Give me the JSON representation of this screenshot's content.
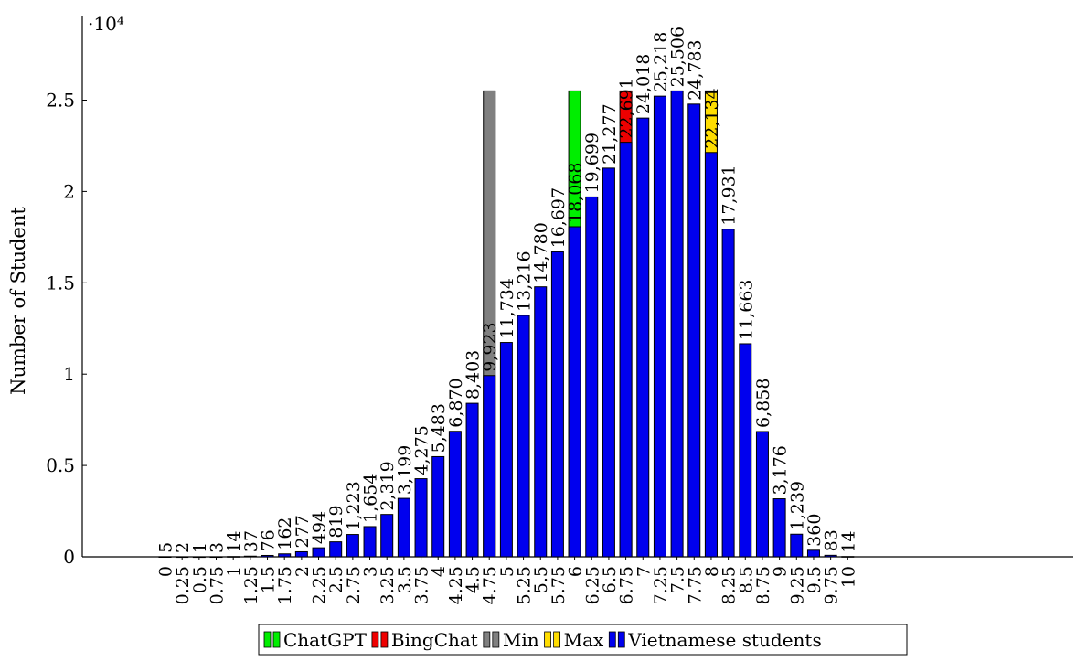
{
  "chart_data": {
    "type": "bar",
    "ylabel": "Number of Student",
    "xlabel": "",
    "y_scale_label": "·10⁴",
    "ylim": [
      0,
      28000
    ],
    "yticks": [
      {
        "value": 0,
        "label": "0"
      },
      {
        "value": 5000,
        "label": "0.5"
      },
      {
        "value": 10000,
        "label": "1"
      },
      {
        "value": 15000,
        "label": "1.5"
      },
      {
        "value": 20000,
        "label": "2"
      },
      {
        "value": 25000,
        "label": "2.5"
      }
    ],
    "grid": false,
    "legend_position": "bottom",
    "categories": [
      "0",
      "0.25",
      "0.5",
      "0.75",
      "1",
      "1.25",
      "1.5",
      "1.75",
      "2",
      "2.25",
      "2.5",
      "2.75",
      "3",
      "3.25",
      "3.5",
      "3.75",
      "4",
      "4.25",
      "4.5",
      "4.75",
      "5",
      "5.25",
      "5.5",
      "5.75",
      "6",
      "6.25",
      "6.5",
      "6.75",
      "7",
      "7.25",
      "7.5",
      "7.75",
      "8",
      "8.25",
      "8.5",
      "8.75",
      "9",
      "9.25",
      "9.5",
      "9.75",
      "10"
    ],
    "series": [
      {
        "name": "ChatGPT",
        "color": "#00ee00",
        "stack_at": "6",
        "top": 25506
      },
      {
        "name": "BingChat",
        "color": "#ee0000",
        "stack_at": "6.75",
        "top": 25506
      },
      {
        "name": "Min",
        "color": "#808080",
        "stack_at": "4.75",
        "top": 25506
      },
      {
        "name": "Max",
        "color": "#ffdd00",
        "stack_at": "8",
        "top": 25506
      },
      {
        "name": "Vietnamese students",
        "color": "#0000ee",
        "values": [
          5,
          2,
          1,
          3,
          14,
          37,
          76,
          162,
          277,
          494,
          819,
          1223,
          1654,
          2319,
          3199,
          4275,
          5483,
          6870,
          8403,
          9923,
          11734,
          13216,
          14780,
          16697,
          18068,
          19699,
          21277,
          22691,
          24018,
          25218,
          25506,
          24783,
          22134,
          17931,
          11663,
          6858,
          3176,
          1239,
          360,
          83,
          14
        ],
        "labels": [
          "5",
          "2",
          "1",
          "3",
          "14",
          "37",
          "76",
          "162",
          "277",
          "494",
          "819",
          "1,223",
          "1,654",
          "2,319",
          "3,199",
          "4,275",
          "5,483",
          "6,870",
          "8,403",
          "9,923",
          "11,734",
          "13,216",
          "14,780",
          "16,697",
          "18,068",
          "19,699",
          "21,277",
          "22,691",
          "24,018",
          "25,218",
          "25,506",
          "24,783",
          "22,134",
          "17,931",
          "11,663",
          "6,858",
          "3,176",
          "1,239",
          "360",
          "83",
          "14"
        ]
      }
    ]
  }
}
